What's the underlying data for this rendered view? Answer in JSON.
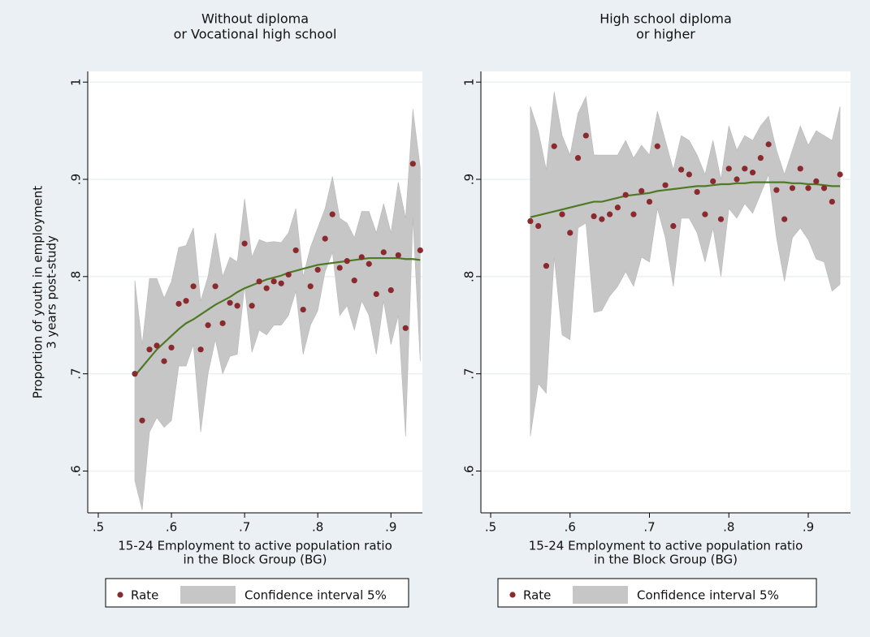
{
  "chart_data": [
    {
      "type": "scatter",
      "title": [
        "Without diploma",
        "or Vocational high school"
      ],
      "ylabel": [
        "Proportion of youth in employment",
        "3 years post-study"
      ],
      "xlabel": [
        "15-24 Employment to active population ratio",
        "in the Block Group (BG)"
      ],
      "x": [
        0.55,
        0.56,
        0.57,
        0.58,
        0.59,
        0.6,
        0.61,
        0.62,
        0.63,
        0.64,
        0.65,
        0.66,
        0.67,
        0.68,
        0.69,
        0.7,
        0.71,
        0.72,
        0.73,
        0.74,
        0.75,
        0.76,
        0.77,
        0.78,
        0.79,
        0.8,
        0.81,
        0.82,
        0.83,
        0.84,
        0.85,
        0.86,
        0.87,
        0.88,
        0.89,
        0.9,
        0.91,
        0.92,
        0.93,
        0.94
      ],
      "series": [
        {
          "name": "Rate",
          "color": "#8b2a2e",
          "values": [
            0.7,
            0.652,
            0.725,
            0.729,
            0.713,
            0.727,
            0.772,
            0.775,
            0.79,
            0.725,
            0.75,
            0.79,
            0.752,
            0.773,
            0.77,
            0.834,
            0.77,
            0.795,
            0.788,
            0.795,
            0.793,
            0.802,
            0.827,
            0.766,
            0.79,
            0.807,
            0.839,
            0.864,
            0.809,
            0.816,
            0.796,
            0.82,
            0.813,
            0.782,
            0.825,
            0.786,
            0.822,
            0.747,
            0.916,
            0.827
          ]
        },
        {
          "name": "Confidence interval 5%",
          "color": "#c6c6c6",
          "upper": [
            0.796,
            0.73,
            0.798,
            0.798,
            0.778,
            0.795,
            0.83,
            0.832,
            0.85,
            0.775,
            0.8,
            0.845,
            0.8,
            0.82,
            0.815,
            0.88,
            0.82,
            0.838,
            0.835,
            0.836,
            0.835,
            0.845,
            0.87,
            0.8,
            0.83,
            0.85,
            0.87,
            0.903,
            0.86,
            0.855,
            0.84,
            0.867,
            0.867,
            0.845,
            0.875,
            0.845,
            0.897,
            0.86,
            0.972,
            0.912
          ],
          "lower": [
            0.59,
            0.56,
            0.64,
            0.655,
            0.645,
            0.652,
            0.708,
            0.708,
            0.73,
            0.64,
            0.7,
            0.735,
            0.7,
            0.718,
            0.72,
            0.79,
            0.722,
            0.745,
            0.74,
            0.75,
            0.75,
            0.76,
            0.785,
            0.72,
            0.75,
            0.765,
            0.805,
            0.825,
            0.76,
            0.77,
            0.745,
            0.775,
            0.76,
            0.72,
            0.775,
            0.73,
            0.76,
            0.636,
            0.86,
            0.713
          ]
        },
        {
          "color": "#4e7a25",
          "values": [
            0.698,
            0.707,
            0.716,
            0.725,
            0.732,
            0.739,
            0.746,
            0.752,
            0.756,
            0.761,
            0.766,
            0.771,
            0.775,
            0.779,
            0.784,
            0.788,
            0.791,
            0.794,
            0.797,
            0.799,
            0.801,
            0.804,
            0.806,
            0.808,
            0.81,
            0.812,
            0.813,
            0.814,
            0.815,
            0.816,
            0.817,
            0.818,
            0.819,
            0.819,
            0.819,
            0.819,
            0.819,
            0.818,
            0.818,
            0.817
          ]
        }
      ],
      "xlim": [
        0.4856,
        0.943
      ],
      "ylim": [
        0.557,
        1.011
      ],
      "xticks": [
        {
          "value": 0.5,
          "label": ".5"
        },
        {
          "value": 0.6,
          "label": ".6"
        },
        {
          "value": 0.7,
          "label": ".7"
        },
        {
          "value": 0.8,
          "label": ".8"
        },
        {
          "value": 0.9,
          "label": ".9"
        }
      ],
      "yticks": [
        {
          "value": 0.6,
          "label": ".6"
        },
        {
          "value": 0.7,
          "label": ".7"
        },
        {
          "value": 0.8,
          "label": ".8"
        },
        {
          "value": 0.9,
          "label": ".9"
        },
        1
      ],
      "grid": true
    },
    {
      "type": "scatter",
      "title": [
        "High school diploma",
        "or higher"
      ],
      "xlabel": [
        "15-24 Employment to active population ratio",
        "in the Block Group (BG)"
      ],
      "x": [
        0.55,
        0.56,
        0.57,
        0.58,
        0.59,
        0.6,
        0.61,
        0.62,
        0.63,
        0.64,
        0.65,
        0.66,
        0.67,
        0.68,
        0.69,
        0.7,
        0.71,
        0.72,
        0.73,
        0.74,
        0.75,
        0.76,
        0.77,
        0.78,
        0.79,
        0.8,
        0.81,
        0.82,
        0.83,
        0.84,
        0.85,
        0.86,
        0.87,
        0.88,
        0.89,
        0.9,
        0.91,
        0.92,
        0.93,
        0.94
      ],
      "series": [
        {
          "name": "Rate",
          "color": "#8b2a2e",
          "values": [
            0.857,
            0.852,
            0.811,
            0.934,
            0.864,
            0.845,
            0.922,
            0.945,
            0.862,
            0.859,
            0.864,
            0.871,
            0.884,
            0.864,
            0.888,
            0.877,
            0.934,
            0.894,
            0.852,
            0.91,
            0.905,
            0.887,
            0.864,
            0.898,
            0.859,
            0.911,
            0.9,
            0.911,
            0.907,
            0.922,
            0.936,
            0.889,
            0.859,
            0.891,
            0.911,
            0.891,
            0.898,
            0.891,
            0.877,
            0.905
          ]
        },
        {
          "name": "Confidence interval 5%",
          "color": "#c6c6c6",
          "upper": [
            0.975,
            0.95,
            0.91,
            0.99,
            0.945,
            0.925,
            0.968,
            0.985,
            0.925,
            0.925,
            0.925,
            0.925,
            0.94,
            0.922,
            0.935,
            0.925,
            0.97,
            0.94,
            0.91,
            0.945,
            0.94,
            0.925,
            0.905,
            0.94,
            0.9,
            0.955,
            0.93,
            0.945,
            0.94,
            0.955,
            0.965,
            0.93,
            0.905,
            0.93,
            0.955,
            0.935,
            0.95,
            0.945,
            0.94,
            0.975
          ],
          "lower": [
            0.636,
            0.69,
            0.68,
            0.82,
            0.74,
            0.735,
            0.85,
            0.855,
            0.763,
            0.765,
            0.78,
            0.79,
            0.805,
            0.79,
            0.82,
            0.815,
            0.87,
            0.84,
            0.79,
            0.86,
            0.86,
            0.845,
            0.815,
            0.85,
            0.8,
            0.87,
            0.86,
            0.875,
            0.865,
            0.885,
            0.905,
            0.84,
            0.795,
            0.84,
            0.85,
            0.838,
            0.818,
            0.815,
            0.785,
            0.792
          ]
        },
        {
          "color": "#4e7a25",
          "values": [
            0.861,
            0.863,
            0.865,
            0.867,
            0.869,
            0.871,
            0.873,
            0.875,
            0.877,
            0.877,
            0.879,
            0.881,
            0.883,
            0.884,
            0.885,
            0.886,
            0.888,
            0.889,
            0.89,
            0.891,
            0.892,
            0.893,
            0.893,
            0.894,
            0.895,
            0.895,
            0.896,
            0.896,
            0.897,
            0.897,
            0.897,
            0.897,
            0.897,
            0.896,
            0.896,
            0.895,
            0.895,
            0.894,
            0.893,
            0.893
          ]
        }
      ],
      "xlim": [
        0.4877,
        0.9532
      ],
      "ylim": [
        0.557,
        1.011
      ],
      "xticks": [
        {
          "value": 0.5,
          "label": ".5"
        },
        {
          "value": 0.6,
          "label": ".6"
        },
        {
          "value": 0.7,
          "label": ".7"
        },
        {
          "value": 0.8,
          "label": ".8"
        },
        {
          "value": 0.9,
          "label": ".9"
        }
      ],
      "yticks": [
        {
          "value": 0.6,
          "label": ".6"
        },
        {
          "value": 0.7,
          "label": ".7"
        },
        {
          "value": 0.8,
          "label": ".8"
        },
        {
          "value": 0.9,
          "label": ".9"
        },
        1
      ],
      "grid": true
    }
  ]
}
